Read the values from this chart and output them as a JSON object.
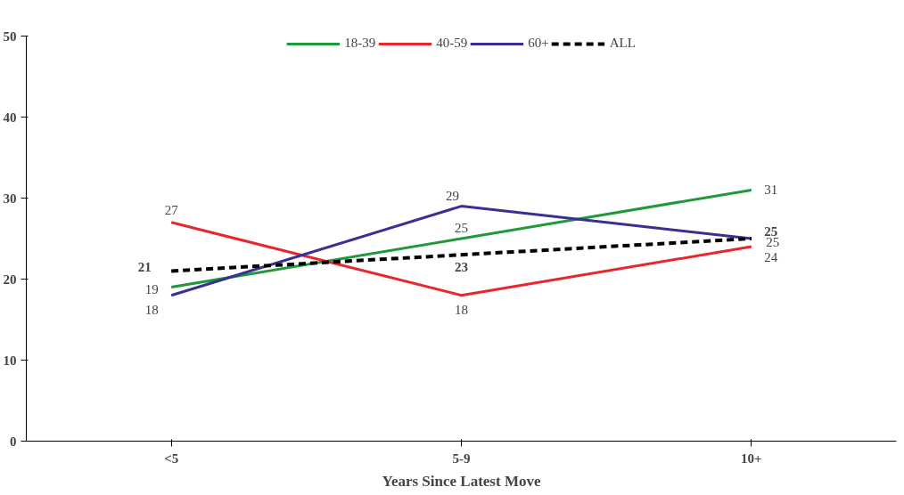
{
  "chart_data": {
    "type": "line",
    "xlabel": "Years Since Latest Move",
    "categories": [
      "<5",
      "5-9",
      "10+"
    ],
    "series": [
      {
        "name": "18-39",
        "color": "#1e9a3c",
        "values": [
          19,
          25,
          31
        ]
      },
      {
        "name": "40-59",
        "color": "#e8262e",
        "values": [
          27,
          18,
          24
        ]
      },
      {
        "name": "60+",
        "color": "#3b2f96",
        "values": [
          18,
          29,
          25
        ]
      },
      {
        "name": "ALL",
        "color": "#000000",
        "values": [
          21,
          23,
          25
        ],
        "line_style": "dashed"
      }
    ],
    "ylim": [
      0,
      50
    ],
    "yticks": [
      0,
      10,
      20,
      30,
      40,
      50
    ],
    "grid": false,
    "legend": "top",
    "data_labels": true,
    "marker": "none",
    "line_style": "solid"
  }
}
